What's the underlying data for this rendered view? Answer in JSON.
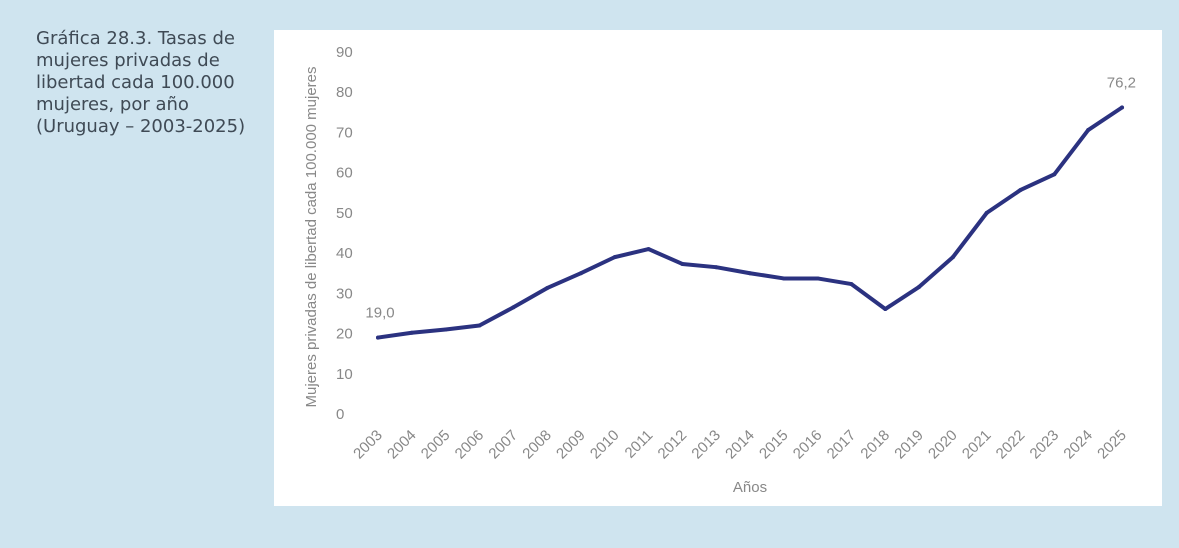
{
  "caption": "Gráfica 28.3. Tasas de mujeres privadas de libertad cada 100.000 mujeres, por año (Uruguay – 2003-2025)",
  "colors": {
    "page_background": "#cfe4ef",
    "panel_background": "#ffffff",
    "line": "#2b3280",
    "text": "#3f4a55",
    "tick_text": "#888888"
  },
  "chart_data": {
    "type": "line",
    "title": "",
    "xlabel": "Años",
    "ylabel": "Mujeres privadas de libertad cada 100.000 mujeres",
    "ylim": [
      0,
      90
    ],
    "yticks": [
      0,
      10,
      20,
      30,
      40,
      50,
      60,
      70,
      80,
      90
    ],
    "grid": false,
    "legend": "none",
    "categories": [
      "2003",
      "2004",
      "2005",
      "2006",
      "2007",
      "2008",
      "2009",
      "2010",
      "2011",
      "2012",
      "2013",
      "2014",
      "2015",
      "2016",
      "2017",
      "2018",
      "2019",
      "2020",
      "2021",
      "2022",
      "2023",
      "2024",
      "2025"
    ],
    "series": [
      {
        "values": [
          19.0,
          20.2,
          21.0,
          22.0,
          26.5,
          31.3,
          35.0,
          39.0,
          41.0,
          37.3,
          36.5,
          35.0,
          33.7,
          33.7,
          32.3,
          26.1,
          31.6,
          39.0,
          50.0,
          55.7,
          59.6,
          70.6,
          76.2
        ]
      }
    ],
    "data_labels": [
      {
        "category": "2003",
        "text": "19,0"
      },
      {
        "category": "2025",
        "text": "76,2"
      }
    ]
  }
}
